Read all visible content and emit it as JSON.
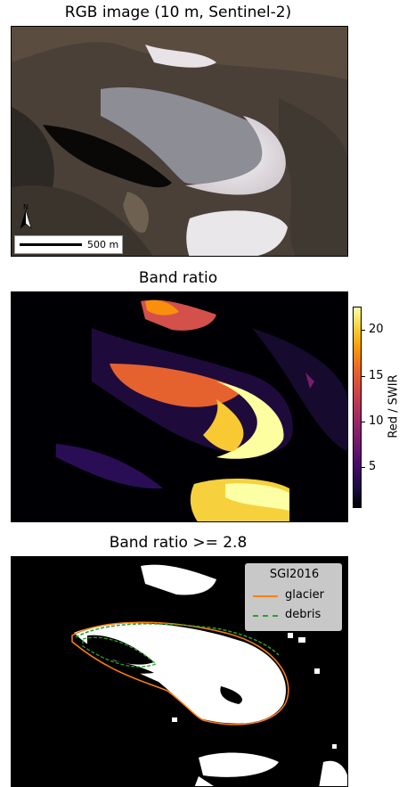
{
  "panels": [
    {
      "title": "RGB image (10 m, Sentinel-2)"
    },
    {
      "title": "Band ratio"
    },
    {
      "title": "Band ratio >= 2.8"
    }
  ],
  "scalebar": {
    "label": "500 m"
  },
  "north_arrow": {
    "label": "N"
  },
  "colorbar": {
    "label": "Red / SWIR",
    "ticks": [
      "20",
      "15",
      "10",
      "5"
    ],
    "colormap": "inferno"
  },
  "legend": {
    "title": "SGI2016",
    "items": [
      {
        "label": "glacier",
        "color": "#ff7f0e"
      },
      {
        "label": "debris",
        "color": "#2ca02c"
      }
    ]
  }
}
